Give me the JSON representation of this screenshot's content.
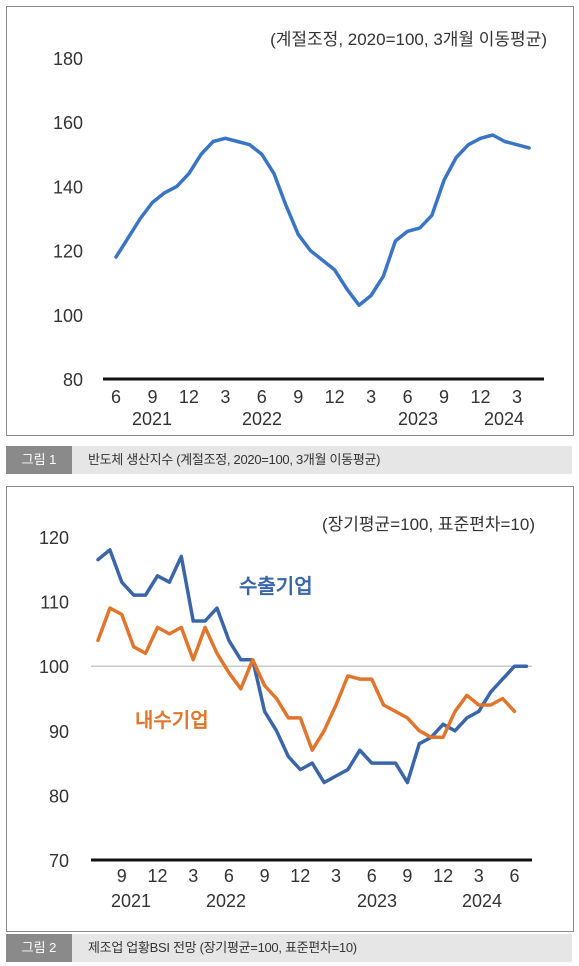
{
  "figure1": {
    "caption_label": "그림 1",
    "caption_text": "반도체 생산지수 (계절조정, 2020=100, 3개월 이동평균)",
    "chart_data": {
      "type": "line",
      "note": "(계절조정, 2020=100, 3개월 이동평균)",
      "ylim": [
        80,
        180
      ],
      "yticks": [
        "180",
        "160",
        "140",
        "120",
        "100",
        "80"
      ],
      "xticks": [
        "6",
        "9",
        "12",
        "3",
        "6",
        "9",
        "12",
        "3",
        "6",
        "9",
        "12",
        "3"
      ],
      "years": [
        "2021",
        "2022",
        "2023",
        "2024"
      ],
      "grid": false,
      "series": [
        {
          "color": "#3a75c4",
          "x": [
            "2021-06",
            "2021-07",
            "2021-08",
            "2021-09",
            "2021-10",
            "2021-11",
            "2021-12",
            "2022-01",
            "2022-02",
            "2022-03",
            "2022-04",
            "2022-05",
            "2022-06",
            "2022-07",
            "2022-08",
            "2022-09",
            "2022-10",
            "2022-11",
            "2022-12",
            "2023-01",
            "2023-02",
            "2023-03",
            "2023-04",
            "2023-05",
            "2023-06",
            "2023-07",
            "2023-08",
            "2023-09",
            "2023-10",
            "2023-11",
            "2023-12",
            "2024-01",
            "2024-02",
            "2024-03",
            "2024-04"
          ],
          "values": [
            118,
            124,
            130,
            135,
            138,
            140,
            144,
            150,
            154,
            155,
            154,
            153,
            150,
            144,
            134,
            125,
            120,
            117,
            114,
            108,
            103,
            106,
            112,
            123,
            126,
            127,
            131,
            142,
            149,
            153,
            155,
            156,
            154,
            153,
            152
          ]
        }
      ]
    }
  },
  "figure2": {
    "caption_label": "그림 2",
    "caption_text": "제조업 업황BSI 전망 (장기평균=100, 표준편차=10)",
    "chart_data": {
      "type": "line",
      "note": "(장기평균=100, 표준편차=10)",
      "ylim": [
        70,
        120
      ],
      "yticks": [
        "120",
        "110",
        "100",
        "90",
        "80",
        "70"
      ],
      "xticks": [
        "9",
        "12",
        "3",
        "6",
        "9",
        "12",
        "3",
        "6",
        "9",
        "12",
        "3",
        "6"
      ],
      "years": [
        "2021",
        "2022",
        "2023",
        "2024"
      ],
      "grid": false,
      "reference_line": 100,
      "series": [
        {
          "name": "수출기업",
          "color": "#3a66a8",
          "x": [
            "2021-07",
            "2021-08",
            "2021-09",
            "2021-10",
            "2021-11",
            "2021-12",
            "2022-01",
            "2022-02",
            "2022-03",
            "2022-04",
            "2022-05",
            "2022-06",
            "2022-07",
            "2022-08",
            "2022-09",
            "2022-10",
            "2022-11",
            "2022-12",
            "2023-01",
            "2023-02",
            "2023-03",
            "2023-04",
            "2023-05",
            "2023-06",
            "2023-07",
            "2023-08",
            "2023-09",
            "2023-10",
            "2023-11",
            "2023-12",
            "2024-01",
            "2024-02",
            "2024-03",
            "2024-04",
            "2024-05",
            "2024-06",
            "2024-07"
          ],
          "values": [
            116.5,
            118,
            113,
            111,
            111,
            114,
            113,
            117,
            107,
            107,
            109,
            104,
            101,
            101,
            93,
            90,
            86,
            84,
            85,
            82,
            83,
            84,
            87,
            85,
            85,
            85,
            82,
            88,
            89,
            91,
            90,
            92,
            93,
            96,
            98,
            100,
            100
          ]
        },
        {
          "name": "내수기업",
          "color": "#e0762e",
          "x": [
            "2021-07",
            "2021-08",
            "2021-09",
            "2021-10",
            "2021-11",
            "2021-12",
            "2022-01",
            "2022-02",
            "2022-03",
            "2022-04",
            "2022-05",
            "2022-06",
            "2022-07",
            "2022-08",
            "2022-09",
            "2022-10",
            "2022-11",
            "2022-12",
            "2023-01",
            "2023-02",
            "2023-03",
            "2023-04",
            "2023-05",
            "2023-06",
            "2023-07",
            "2023-08",
            "2023-09",
            "2023-10",
            "2023-11",
            "2023-12",
            "2024-01",
            "2024-02",
            "2024-03",
            "2024-04",
            "2024-05",
            "2024-06"
          ],
          "values": [
            104,
            109,
            108,
            103,
            102,
            106,
            105,
            106,
            101,
            106,
            102,
            99,
            96.5,
            101,
            97,
            95,
            92,
            92,
            87,
            90,
            94,
            98.5,
            98,
            98,
            94,
            93,
            92,
            90,
            89,
            89,
            93,
            95.5,
            94,
            94,
            95,
            93
          ]
        }
      ]
    }
  }
}
